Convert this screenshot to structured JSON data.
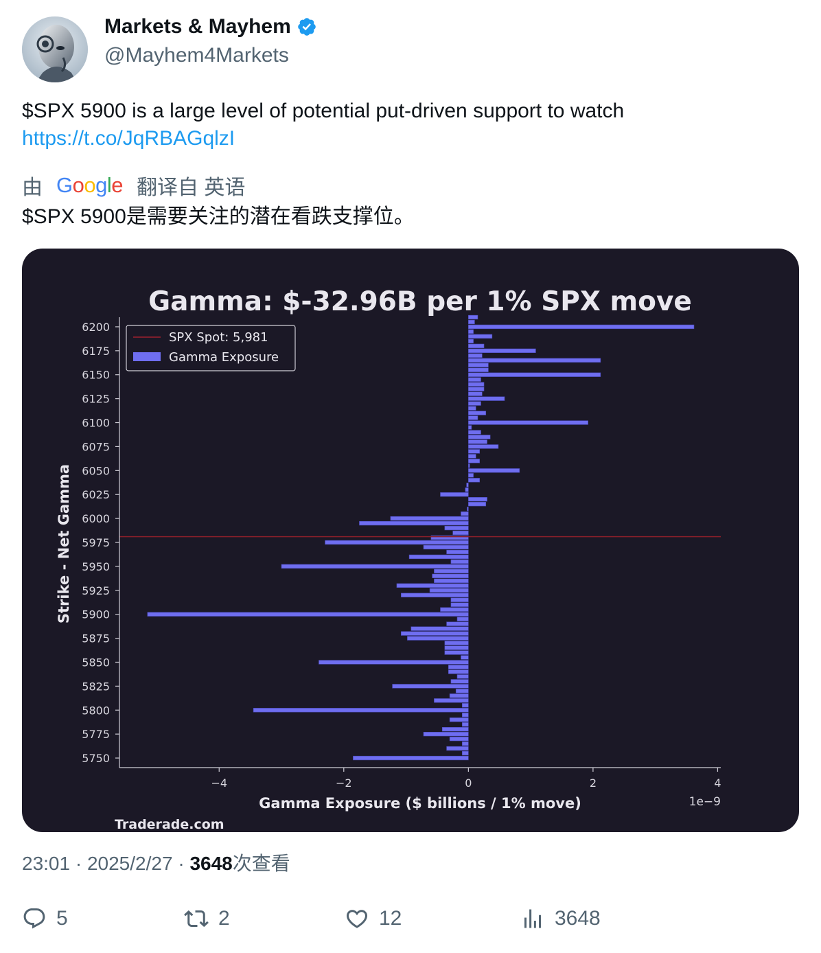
{
  "author": {
    "display_name": "Markets & Mayhem",
    "handle": "@Mayhem4Markets",
    "verified_color": "#1d9bf0"
  },
  "tweet": {
    "text": "$SPX 5900 is a large level of potential put-driven support to watch",
    "link": "https://t.co/JqRBAGqlzI"
  },
  "translation": {
    "prefix": "由",
    "provider": "Google",
    "suffix": "翻译自 英语",
    "text": "$SPX 5900是需要关注的潜在看跌支撑位。"
  },
  "meta": {
    "time": "23:01",
    "date": "2025/2/27",
    "views_count": "3648",
    "views_label": "次查看"
  },
  "actions": {
    "replies": "5",
    "retweets": "2",
    "likes": "12",
    "views": "3648"
  },
  "chart_data": {
    "type": "bar",
    "orientation": "horizontal",
    "title": "Gamma: $-32.96B per 1% SPX move",
    "xlabel": "Gamma Exposure ($ billions / 1% move)",
    "ylabel": "Strike - Net Gamma",
    "x_offset_label": "1e−9",
    "xlim": [
      -5.6,
      4.05
    ],
    "ylim": [
      5740,
      6210
    ],
    "x_ticks": [
      -4,
      -2,
      0,
      2,
      4
    ],
    "x_tick_labels": [
      "−4",
      "−2",
      "0",
      "2",
      "4"
    ],
    "y_ticks": [
      5750,
      5775,
      5800,
      5825,
      5850,
      5875,
      5900,
      5925,
      5950,
      5975,
      6000,
      6025,
      6050,
      6075,
      6100,
      6125,
      6150,
      6175,
      6200
    ],
    "grid": false,
    "legend_position": "upper-left",
    "bar_color": "#6f6ef0",
    "spot_line_color": "#8a1f2a",
    "spot": {
      "label": "SPX Spot: 5,981",
      "value": 5981
    },
    "series": [
      {
        "name": "Gamma Exposure",
        "strikes": [
          5750,
          5755,
          5760,
          5765,
          5770,
          5775,
          5780,
          5785,
          5790,
          5795,
          5800,
          5805,
          5810,
          5815,
          5820,
          5825,
          5830,
          5835,
          5840,
          5845,
          5850,
          5855,
          5860,
          5865,
          5870,
          5875,
          5880,
          5885,
          5890,
          5895,
          5900,
          5905,
          5910,
          5915,
          5920,
          5925,
          5930,
          5935,
          5940,
          5945,
          5950,
          5955,
          5960,
          5965,
          5970,
          5975,
          5980,
          5985,
          5990,
          5995,
          6000,
          6005,
          6010,
          6015,
          6020,
          6025,
          6030,
          6035,
          6040,
          6045,
          6050,
          6055,
          6060,
          6065,
          6070,
          6075,
          6080,
          6085,
          6090,
          6095,
          6100,
          6105,
          6110,
          6115,
          6120,
          6125,
          6130,
          6135,
          6140,
          6145,
          6150,
          6155,
          6160,
          6165,
          6170,
          6175,
          6180,
          6185,
          6190,
          6195,
          6200,
          6205,
          6210
        ],
        "values": [
          -1.85,
          -0.1,
          -0.35,
          -0.1,
          -0.3,
          -0.72,
          -0.42,
          -0.1,
          -0.3,
          -0.1,
          -3.45,
          -0.1,
          -0.55,
          -0.3,
          -0.2,
          -1.22,
          -0.28,
          -0.18,
          -0.32,
          -0.32,
          -2.4,
          -0.12,
          -0.38,
          -0.38,
          -0.38,
          -0.98,
          -1.08,
          -0.92,
          -0.35,
          -0.18,
          -5.15,
          -0.45,
          -0.28,
          -0.28,
          -1.08,
          -0.62,
          -1.15,
          -0.55,
          -0.58,
          -0.55,
          -3.0,
          -0.28,
          -0.95,
          -0.35,
          -0.72,
          -2.3,
          -0.6,
          -0.25,
          -0.38,
          -1.75,
          -1.25,
          -0.12,
          -0.02,
          0.28,
          0.3,
          -0.45,
          -0.05,
          -0.03,
          0.18,
          0.08,
          0.82,
          0.02,
          0.18,
          0.12,
          0.18,
          0.48,
          0.3,
          0.35,
          0.2,
          0.05,
          1.92,
          0.15,
          0.28,
          0.12,
          0.2,
          0.58,
          0.22,
          0.25,
          0.25,
          0.2,
          2.12,
          0.32,
          0.32,
          2.12,
          0.22,
          1.08,
          0.25,
          0.08,
          0.38,
          0.08,
          3.62,
          0.1,
          0.15
        ]
      }
    ],
    "watermark": "Traderade.com"
  }
}
